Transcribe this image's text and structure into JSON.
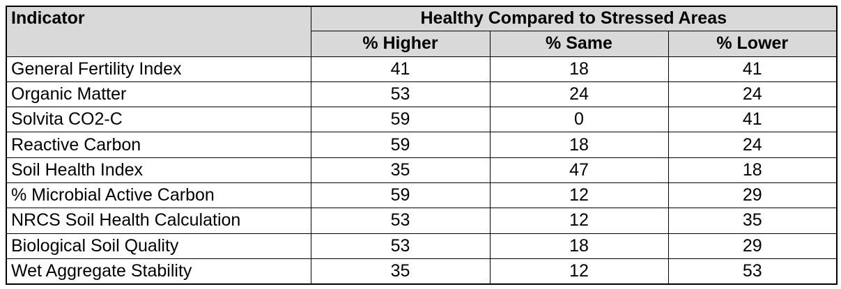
{
  "table": {
    "header": {
      "indicator": "Indicator",
      "group": "Healthy Compared to Stressed Areas",
      "columns": [
        "% Higher",
        "% Same",
        "% Lower"
      ]
    },
    "rows": [
      [
        "General Fertility Index",
        41,
        18,
        41
      ],
      [
        "Organic Matter",
        53,
        24,
        24
      ],
      [
        "Solvita CO2-C",
        59,
        0,
        41
      ],
      [
        "Reactive Carbon",
        59,
        18,
        24
      ],
      [
        "Soil Health Index",
        35,
        47,
        18
      ],
      [
        "% Microbial Active Carbon",
        59,
        12,
        29
      ],
      [
        "NRCS Soil Health Calculation",
        53,
        12,
        35
      ],
      [
        "Biological Soil Quality",
        53,
        18,
        29
      ],
      [
        "Wet Aggregate Stability",
        35,
        12,
        53
      ]
    ]
  }
}
